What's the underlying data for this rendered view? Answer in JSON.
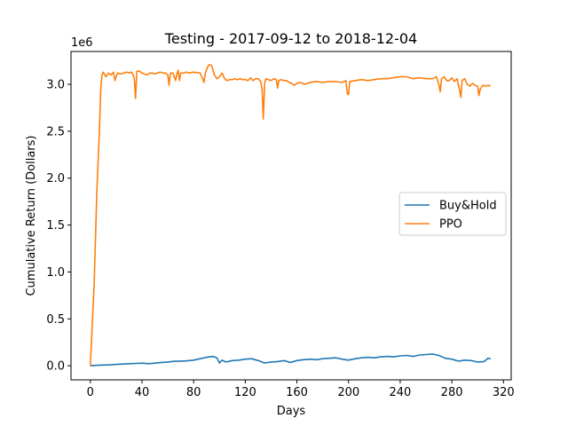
{
  "chart_data": {
    "type": "line",
    "title": "Testing - 2017-09-12 to 2018-12-04",
    "xlabel": "Days",
    "ylabel": "Cumulative Return (Dollars)",
    "y_offset_label": "1e6",
    "xlim": [
      -15,
      326
    ],
    "ylim": [
      -150000,
      3350000
    ],
    "x_ticks": [
      0,
      40,
      80,
      120,
      160,
      200,
      240,
      280,
      320
    ],
    "x_tick_labels": [
      "0",
      "40",
      "80",
      "120",
      "160",
      "200",
      "240",
      "280",
      "320"
    ],
    "y_ticks": [
      0,
      500000,
      1000000,
      1500000,
      2000000,
      2500000,
      3000000
    ],
    "y_tick_labels": [
      "0.0",
      "0.5",
      "1.0",
      "1.5",
      "2.0",
      "2.5",
      "3.0"
    ],
    "legend_position": "center-right",
    "grid": false,
    "series": [
      {
        "name": "Buy&Hold",
        "color": "#1f77b4",
        "points": [
          [
            0,
            0
          ],
          [
            5,
            5000
          ],
          [
            10,
            8000
          ],
          [
            15,
            10000
          ],
          [
            20,
            15000
          ],
          [
            25,
            18000
          ],
          [
            30,
            22000
          ],
          [
            35,
            25000
          ],
          [
            40,
            28000
          ],
          [
            45,
            22000
          ],
          [
            50,
            28000
          ],
          [
            55,
            35000
          ],
          [
            60,
            40000
          ],
          [
            65,
            48000
          ],
          [
            70,
            50000
          ],
          [
            75,
            52000
          ],
          [
            80,
            60000
          ],
          [
            85,
            75000
          ],
          [
            90,
            90000
          ],
          [
            95,
            100000
          ],
          [
            98,
            85000
          ],
          [
            100,
            30000
          ],
          [
            102,
            60000
          ],
          [
            105,
            40000
          ],
          [
            110,
            55000
          ],
          [
            115,
            60000
          ],
          [
            120,
            70000
          ],
          [
            125,
            75000
          ],
          [
            130,
            55000
          ],
          [
            135,
            30000
          ],
          [
            140,
            40000
          ],
          [
            145,
            45000
          ],
          [
            150,
            55000
          ],
          [
            155,
            35000
          ],
          [
            160,
            55000
          ],
          [
            165,
            65000
          ],
          [
            170,
            70000
          ],
          [
            175,
            65000
          ],
          [
            180,
            75000
          ],
          [
            185,
            80000
          ],
          [
            190,
            85000
          ],
          [
            195,
            70000
          ],
          [
            200,
            60000
          ],
          [
            205,
            75000
          ],
          [
            210,
            85000
          ],
          [
            215,
            90000
          ],
          [
            220,
            85000
          ],
          [
            225,
            95000
          ],
          [
            230,
            100000
          ],
          [
            235,
            95000
          ],
          [
            240,
            105000
          ],
          [
            245,
            110000
          ],
          [
            250,
            100000
          ],
          [
            255,
            115000
          ],
          [
            260,
            120000
          ],
          [
            265,
            125000
          ],
          [
            270,
            110000
          ],
          [
            275,
            80000
          ],
          [
            280,
            70000
          ],
          [
            285,
            50000
          ],
          [
            290,
            60000
          ],
          [
            295,
            55000
          ],
          [
            300,
            40000
          ],
          [
            305,
            45000
          ],
          [
            308,
            80000
          ],
          [
            310,
            75000
          ]
        ]
      },
      {
        "name": "PPO",
        "color": "#ff7f0e",
        "points": [
          [
            0,
            0
          ],
          [
            3,
            900000
          ],
          [
            5,
            1850000
          ],
          [
            7,
            2500000
          ],
          [
            8,
            2950000
          ],
          [
            9,
            3100000
          ],
          [
            10,
            3130000
          ],
          [
            12,
            3080000
          ],
          [
            14,
            3120000
          ],
          [
            16,
            3100000
          ],
          [
            18,
            3130000
          ],
          [
            19,
            3040000
          ],
          [
            21,
            3120000
          ],
          [
            23,
            3110000
          ],
          [
            26,
            3120000
          ],
          [
            28,
            3130000
          ],
          [
            30,
            3120000
          ],
          [
            32,
            3130000
          ],
          [
            34,
            3070000
          ],
          [
            35,
            2850000
          ],
          [
            36,
            3140000
          ],
          [
            38,
            3140000
          ],
          [
            40,
            3120000
          ],
          [
            42,
            3110000
          ],
          [
            44,
            3100000
          ],
          [
            46,
            3120000
          ],
          [
            48,
            3120000
          ],
          [
            50,
            3110000
          ],
          [
            52,
            3120000
          ],
          [
            54,
            3130000
          ],
          [
            56,
            3120000
          ],
          [
            58,
            3120000
          ],
          [
            60,
            3100000
          ],
          [
            61,
            2990000
          ],
          [
            62,
            3120000
          ],
          [
            64,
            3120000
          ],
          [
            66,
            3040000
          ],
          [
            67,
            3110000
          ],
          [
            68,
            3150000
          ],
          [
            69,
            3040000
          ],
          [
            70,
            3120000
          ],
          [
            72,
            3120000
          ],
          [
            74,
            3130000
          ],
          [
            76,
            3120000
          ],
          [
            80,
            3130000
          ],
          [
            85,
            3120000
          ],
          [
            87,
            3060000
          ],
          [
            88,
            3020000
          ],
          [
            89,
            3120000
          ],
          [
            91,
            3190000
          ],
          [
            92,
            3210000
          ],
          [
            94,
            3200000
          ],
          [
            96,
            3100000
          ],
          [
            98,
            3060000
          ],
          [
            100,
            3080000
          ],
          [
            102,
            3120000
          ],
          [
            104,
            3060000
          ],
          [
            106,
            3040000
          ],
          [
            108,
            3050000
          ],
          [
            110,
            3050000
          ],
          [
            112,
            3060000
          ],
          [
            114,
            3050000
          ],
          [
            116,
            3060000
          ],
          [
            118,
            3050000
          ],
          [
            120,
            3050000
          ],
          [
            122,
            3040000
          ],
          [
            124,
            3070000
          ],
          [
            126,
            3040000
          ],
          [
            128,
            3060000
          ],
          [
            130,
            3060000
          ],
          [
            132,
            3030000
          ],
          [
            133,
            2950000
          ],
          [
            134,
            2630000
          ],
          [
            135,
            3010000
          ],
          [
            136,
            3060000
          ],
          [
            138,
            3050000
          ],
          [
            140,
            3040000
          ],
          [
            142,
            3060000
          ],
          [
            144,
            3050000
          ],
          [
            145,
            2960000
          ],
          [
            146,
            3040000
          ],
          [
            148,
            3050000
          ],
          [
            150,
            3040000
          ],
          [
            152,
            3040000
          ],
          [
            154,
            3020000
          ],
          [
            156,
            3010000
          ],
          [
            158,
            2990000
          ],
          [
            160,
            3010000
          ],
          [
            163,
            3020000
          ],
          [
            166,
            3000000
          ],
          [
            170,
            3020000
          ],
          [
            175,
            3030000
          ],
          [
            180,
            3020000
          ],
          [
            185,
            3030000
          ],
          [
            190,
            3030000
          ],
          [
            195,
            3020000
          ],
          [
            198,
            3040000
          ],
          [
            199,
            2900000
          ],
          [
            200,
            2890000
          ],
          [
            201,
            3030000
          ],
          [
            205,
            3040000
          ],
          [
            210,
            3050000
          ],
          [
            215,
            3040000
          ],
          [
            220,
            3050000
          ],
          [
            225,
            3060000
          ],
          [
            230,
            3060000
          ],
          [
            235,
            3070000
          ],
          [
            240,
            3080000
          ],
          [
            245,
            3080000
          ],
          [
            250,
            3060000
          ],
          [
            255,
            3070000
          ],
          [
            260,
            3060000
          ],
          [
            265,
            3060000
          ],
          [
            268,
            3080000
          ],
          [
            270,
            3000000
          ],
          [
            271,
            2920000
          ],
          [
            272,
            3060000
          ],
          [
            274,
            3080000
          ],
          [
            276,
            3040000
          ],
          [
            278,
            3040000
          ],
          [
            280,
            3070000
          ],
          [
            282,
            3030000
          ],
          [
            284,
            3060000
          ],
          [
            286,
            2940000
          ],
          [
            287,
            2860000
          ],
          [
            288,
            3040000
          ],
          [
            290,
            3060000
          ],
          [
            292,
            3000000
          ],
          [
            294,
            2980000
          ],
          [
            296,
            3010000
          ],
          [
            298,
            2990000
          ],
          [
            300,
            2980000
          ],
          [
            301,
            2880000
          ],
          [
            302,
            2950000
          ],
          [
            304,
            2990000
          ],
          [
            306,
            2980000
          ],
          [
            308,
            2990000
          ],
          [
            310,
            2980000
          ]
        ]
      }
    ]
  }
}
